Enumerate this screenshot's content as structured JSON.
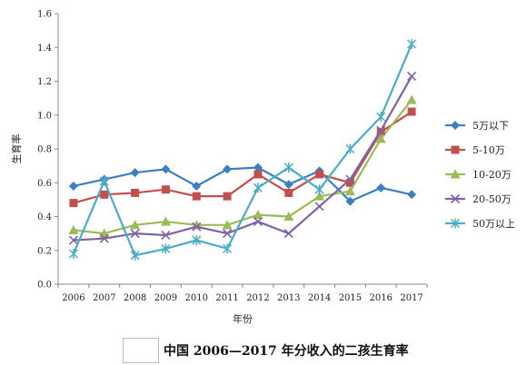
{
  "chart_data": {
    "type": "line",
    "x": [
      "2006",
      "2007",
      "2008",
      "2009",
      "2010",
      "2011",
      "2012",
      "2013",
      "2014",
      "2015",
      "2016",
      "2017"
    ],
    "xlabel": "年份",
    "ylabel": "生育率",
    "ylim": [
      0,
      1.6
    ],
    "yticks": [
      "0.0",
      "0.2",
      "0.4",
      "0.6",
      "0.8",
      "1.0",
      "1.2",
      "1.4",
      "1.6"
    ],
    "grid": false,
    "legend": "right",
    "series": [
      {
        "name": "5万以下",
        "color": "#3d7fc1",
        "marker": "diamond",
        "values": [
          0.58,
          0.62,
          0.66,
          0.68,
          0.58,
          0.68,
          0.69,
          0.59,
          0.67,
          0.49,
          0.57,
          0.53
        ]
      },
      {
        "name": "5-10万",
        "color": "#c0504d",
        "marker": "square",
        "values": [
          0.48,
          0.53,
          0.54,
          0.56,
          0.52,
          0.52,
          0.65,
          0.54,
          0.65,
          0.6,
          0.9,
          1.02
        ]
      },
      {
        "name": "10-20万",
        "color": "#9bbb59",
        "marker": "triangle",
        "values": [
          0.32,
          0.3,
          0.35,
          0.37,
          0.35,
          0.35,
          0.41,
          0.4,
          0.52,
          0.55,
          0.86,
          1.09
        ]
      },
      {
        "name": "20-50万",
        "color": "#8064a2",
        "marker": "x",
        "values": [
          0.26,
          0.27,
          0.3,
          0.29,
          0.34,
          0.3,
          0.37,
          0.3,
          0.46,
          0.62,
          0.91,
          1.23
        ]
      },
      {
        "name": "50万以上",
        "color": "#4bacc6",
        "marker": "star",
        "values": [
          0.18,
          0.61,
          0.17,
          0.21,
          0.26,
          0.21,
          0.57,
          0.69,
          0.56,
          0.8,
          0.99,
          1.42
        ]
      }
    ]
  },
  "caption": "中国 2006—2017 年分收入的二孩生育率"
}
